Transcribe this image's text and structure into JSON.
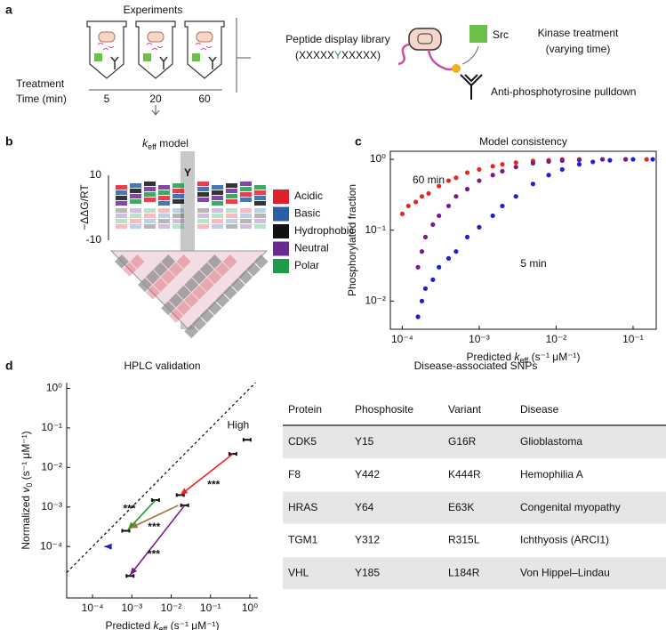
{
  "panel_a": {
    "label": "a",
    "experiments_title": "Experiments",
    "treatment_lines": [
      "Treatment",
      "Time (min)"
    ],
    "times": [
      5,
      20,
      60
    ],
    "library_title": "Peptide display library",
    "library_seq": {
      "prefix": "(XXXXX",
      "center": "Y",
      "suffix": "XXXXX)"
    },
    "src": "Src",
    "kinase_lines": [
      "Kinase treatment",
      "(varying time)"
    ],
    "pulldown": "Anti-phosphotyrosine pulldown"
  },
  "panel_b": {
    "label": "b",
    "title": {
      "var": "k",
      "sub": "eff",
      "post": " model"
    },
    "ylabel": "−ΔΔG/RT",
    "yticks": [
      10,
      -10
    ],
    "legend": [
      {
        "name": "Acidic",
        "color": "#e0202a"
      },
      {
        "name": "Basic",
        "color": "#2a5fa5"
      },
      {
        "name": "Hydrophobic",
        "color": "#111111"
      },
      {
        "name": "Neutral",
        "color": "#6a2a90"
      },
      {
        "name": "Polar",
        "color": "#1e9a4a"
      }
    ]
  },
  "chart_data": [
    {
      "type": "scatter",
      "label": "c",
      "title": "Model consistency",
      "xlabel": {
        "pre": "Predicted ",
        "var": "k",
        "sub": "eff",
        "post": " (s⁻¹ μM⁻¹)"
      },
      "ylabel": "Phosphorylated fraction",
      "log_x": true,
      "log_y": true,
      "xlim": [
        7e-05,
        0.2
      ],
      "ylim": [
        0.004,
        1.3
      ],
      "xticks": [
        {
          "value": 0.0001,
          "label": "10⁻⁴"
        },
        {
          "value": 0.001,
          "label": "10⁻³"
        },
        {
          "value": 0.01,
          "label": "10⁻²"
        },
        {
          "value": 0.1,
          "label": "10⁻¹"
        }
      ],
      "yticks": [
        {
          "value": 0.01,
          "label": "10⁻²"
        },
        {
          "value": 0.1,
          "label": "10⁻¹"
        },
        {
          "value": 1,
          "label": "10⁰"
        }
      ],
      "series": [
        {
          "name": "60 min",
          "color": "#e8261f",
          "x": [
            0.0001,
            0.00012,
            0.00015,
            0.00018,
            0.00022,
            0.0003,
            0.0004,
            0.0005,
            0.0007,
            0.001,
            0.0015,
            0.002,
            0.003,
            0.005,
            0.008,
            0.012,
            0.02,
            0.04,
            0.08,
            0.15
          ],
          "values": [
            0.17,
            0.22,
            0.25,
            0.3,
            0.33,
            0.42,
            0.5,
            0.55,
            0.65,
            0.72,
            0.8,
            0.85,
            0.9,
            0.95,
            0.97,
            1.0,
            1.0,
            1.0,
            1.0,
            1.0
          ]
        },
        {
          "color": "#7b1a8f",
          "x": [
            0.00016,
            0.00018,
            0.0002,
            0.00025,
            0.0003,
            0.0004,
            0.0005,
            0.0007,
            0.001,
            0.0015,
            0.002,
            0.003,
            0.005,
            0.008,
            0.012,
            0.02,
            0.04,
            0.08
          ],
          "values": [
            0.03,
            0.05,
            0.08,
            0.12,
            0.16,
            0.22,
            0.3,
            0.38,
            0.5,
            0.6,
            0.68,
            0.78,
            0.88,
            0.93,
            0.96,
            0.98,
            1.0,
            1.0
          ]
        },
        {
          "name": "5 min",
          "color": "#1f1fd6",
          "x": [
            0.00016,
            0.00018,
            0.0002,
            0.00025,
            0.0003,
            0.0004,
            0.0005,
            0.0007,
            0.001,
            0.0015,
            0.002,
            0.003,
            0.005,
            0.008,
            0.012,
            0.02,
            0.03,
            0.05,
            0.1,
            0.18
          ],
          "values": [
            0.006,
            0.01,
            0.015,
            0.02,
            0.03,
            0.04,
            0.05,
            0.08,
            0.11,
            0.16,
            0.22,
            0.3,
            0.45,
            0.6,
            0.72,
            0.85,
            0.92,
            0.97,
            1.0,
            1.0
          ]
        }
      ]
    },
    {
      "type": "arrows",
      "label": "d",
      "title": "HPLC validation",
      "xlabel": {
        "pre": "Predicted ",
        "var": "k",
        "sub": "eff",
        "post": " (s⁻¹ μM⁻¹)"
      },
      "ylabel": {
        "pre": "Normalized ",
        "var": "v",
        "sub": "0",
        "post": " (s⁻¹ μM⁻¹)"
      },
      "log_x": true,
      "log_y": true,
      "xlim": [
        2.2e-05,
        1.6
      ],
      "ylim": [
        5e-06,
        1.4
      ],
      "xticks": [
        {
          "value": 0.0001,
          "label": "10⁻⁴"
        },
        {
          "value": 0.001,
          "label": "10⁻³"
        },
        {
          "value": 0.01,
          "label": "10⁻²"
        },
        {
          "value": 0.1,
          "label": "10⁻¹"
        },
        {
          "value": 1,
          "label": "10⁰"
        }
      ],
      "yticks": [
        {
          "value": 0.0001,
          "label": "10⁻⁴"
        },
        {
          "value": 0.001,
          "label": "10⁻³"
        },
        {
          "value": 0.01,
          "label": "10⁻²"
        },
        {
          "value": 0.1,
          "label": "10⁻¹"
        },
        {
          "value": 1,
          "label": "10⁰"
        }
      ],
      "points": {
        "x": [
          0.85,
          0.37,
          0.017,
          0.022,
          0.004,
          0.0007,
          0.0009
        ],
        "values": [
          0.05,
          0.022,
          0.002,
          0.0011,
          0.0015,
          0.00025,
          1.8e-05
        ]
      },
      "high_label": "High",
      "arrows": [
        {
          "color": "#e8261f",
          "from": [
            0.37,
            0.022
          ],
          "to": [
            0.017,
            0.002
          ],
          "label": "***"
        },
        {
          "color": "#1e9a30",
          "from": [
            0.004,
            0.0015
          ],
          "to": [
            0.0008,
            0.00027
          ],
          "label": "***"
        },
        {
          "color": "#a0703a",
          "from": [
            0.015,
            0.0011
          ],
          "to": [
            0.0009,
            0.00029
          ],
          "label": "***"
        },
        {
          "color": "#7b1a8f",
          "from": [
            0.022,
            0.0011
          ],
          "to": [
            0.0009,
            1.9e-05
          ],
          "label": "***"
        },
        {
          "color": "#1f1fd6",
          "from": [
            0.00024,
            0.0001
          ],
          "to": [
            0.0002,
            0.0001
          ]
        }
      ]
    }
  ],
  "table": {
    "title": "Disease-associated SNPs",
    "header": [
      "Protein",
      "Phosphosite",
      "Variant",
      "Disease"
    ],
    "protein_colors": [
      "#e8261f",
      "#1f1fd6",
      "#1e9a30",
      "#a0703a",
      "#7b1a8f"
    ],
    "rows": [
      [
        "CDK5",
        "Y15",
        "G16R",
        "Glioblastoma"
      ],
      [
        "F8",
        "Y442",
        "K444R",
        "Hemophilia A"
      ],
      [
        "HRAS",
        "Y64",
        "E63K",
        "Congenital myopathy"
      ],
      [
        "TGM1",
        "Y312",
        "R315L",
        "Ichthyosis (ARCI1)"
      ],
      [
        "VHL",
        "Y185",
        "L184R",
        "Von Hippel–Lindau"
      ]
    ]
  }
}
